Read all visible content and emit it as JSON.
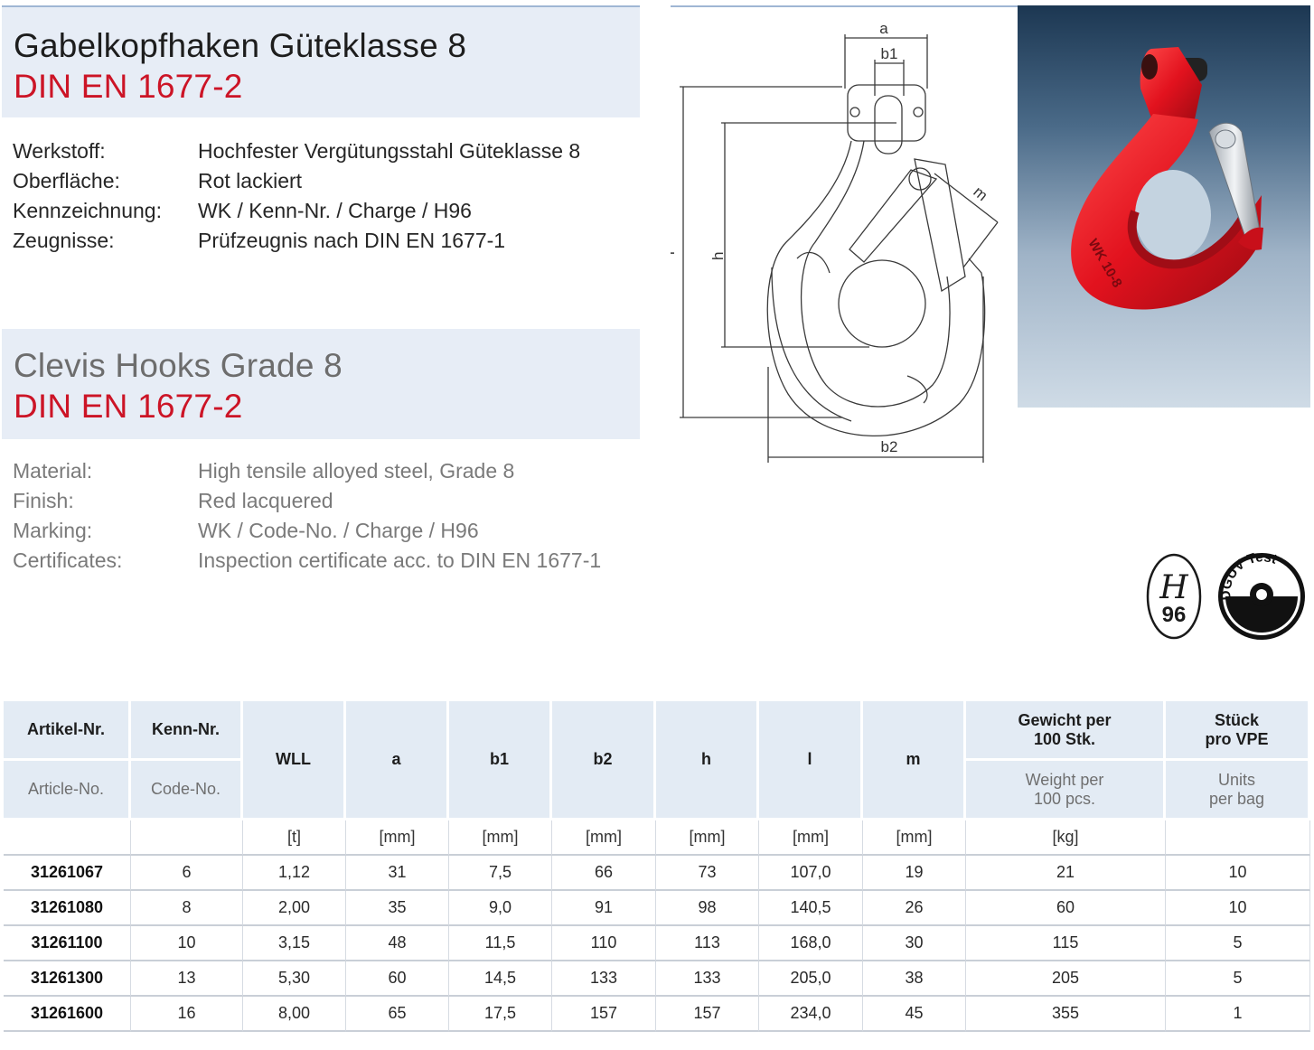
{
  "title_de": {
    "line1": "Gabelkopfhaken Güteklasse 8",
    "line2": "DIN EN 1677-2"
  },
  "specs_de": [
    {
      "label": "Werkstoff:",
      "value": "Hochfester Vergütungsstahl Güteklasse 8"
    },
    {
      "label": "Oberfläche:",
      "value": "Rot lackiert"
    },
    {
      "label": "Kennzeichnung:",
      "value": "WK / Kenn-Nr. / Charge / H96"
    },
    {
      "label": "Zeugnisse:",
      "value": "Prüfzeugnis nach DIN EN 1677-1"
    }
  ],
  "title_en": {
    "line1": "Clevis Hooks Grade 8",
    "line2": "DIN EN 1677-2"
  },
  "specs_en": [
    {
      "label": "Material:",
      "value": "High tensile alloyed steel, Grade 8"
    },
    {
      "label": "Finish:",
      "value": "Red lacquered"
    },
    {
      "label": "Marking:",
      "value": "WK / Code-No. / Charge / H96"
    },
    {
      "label": "Certificates:",
      "value": "Inspection certificate acc. to DIN EN 1677-1"
    }
  ],
  "drawing_labels": {
    "a": "a",
    "b1": "b1",
    "b2": "b2",
    "h": "h",
    "l": "l",
    "m": "m"
  },
  "photo_marking": {
    "wk": "WK 10-8"
  },
  "badges": {
    "h96_letter": "H",
    "h96_number": "96",
    "dguv_text": "DGUV Test"
  },
  "colors": {
    "brand_red": "#cc1426",
    "header_bg": "#e3ebf4",
    "title_box_bg": "#e7edf6"
  },
  "table": {
    "headers": {
      "artikel_de": "Artikel-Nr.",
      "artikel_en": "Article-No.",
      "kenn_de": "Kenn-Nr.",
      "kenn_en": "Code-No.",
      "wll": "WLL",
      "a": "a",
      "b1": "b1",
      "b2": "b2",
      "h": "h",
      "l": "l",
      "m": "m",
      "weight_de_1": "Gewicht per",
      "weight_de_2": "100 Stk.",
      "weight_en_1": "Weight per",
      "weight_en_2": "100 pcs.",
      "units_de_1": "Stück",
      "units_de_2": "pro VPE",
      "units_en_1": "Units",
      "units_en_2": "per bag"
    },
    "units": [
      "",
      "",
      "[t]",
      "[mm]",
      "[mm]",
      "[mm]",
      "[mm]",
      "[mm]",
      "[mm]",
      "[kg]",
      ""
    ],
    "rows": [
      [
        "31261067",
        "6",
        "1,12",
        "31",
        "7,5",
        "66",
        "73",
        "107,0",
        "19",
        "21",
        "10"
      ],
      [
        "31261080",
        "8",
        "2,00",
        "35",
        "9,0",
        "91",
        "98",
        "140,5",
        "26",
        "60",
        "10"
      ],
      [
        "31261100",
        "10",
        "3,15",
        "48",
        "11,5",
        "110",
        "113",
        "168,0",
        "30",
        "115",
        "5"
      ],
      [
        "31261300",
        "13",
        "5,30",
        "60",
        "14,5",
        "133",
        "133",
        "205,0",
        "38",
        "205",
        "5"
      ],
      [
        "31261600",
        "16",
        "8,00",
        "65",
        "17,5",
        "157",
        "157",
        "234,0",
        "45",
        "355",
        "1"
      ]
    ]
  }
}
